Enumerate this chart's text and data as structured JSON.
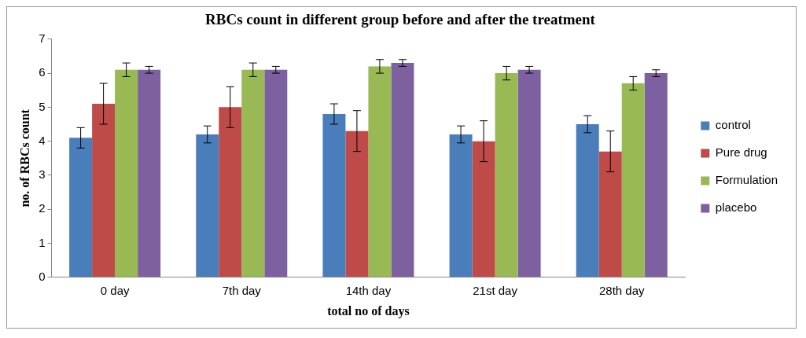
{
  "chart_data": {
    "type": "bar",
    "title": "RBCs count in different group before and after the treatment",
    "xlabel": "total no of days",
    "ylabel": "no. of RBCs count",
    "categories": [
      "0 day",
      "7th day",
      "14th day",
      "21st day",
      "28th day"
    ],
    "series": [
      {
        "name": "control",
        "color": "#4a7ebb",
        "values": [
          4.1,
          4.2,
          4.8,
          4.2,
          4.5
        ],
        "errors": [
          0.3,
          0.25,
          0.3,
          0.25,
          0.25
        ]
      },
      {
        "name": "Pure drug",
        "color": "#be4b48",
        "values": [
          5.1,
          5.0,
          4.3,
          4.0,
          3.7
        ],
        "errors": [
          0.6,
          0.6,
          0.6,
          0.6,
          0.6
        ]
      },
      {
        "name": "Formulation",
        "color": "#98b954",
        "values": [
          6.1,
          6.1,
          6.2,
          6.0,
          5.7
        ],
        "errors": [
          0.2,
          0.2,
          0.2,
          0.2,
          0.2
        ]
      },
      {
        "name": "placebo",
        "color": "#7d60a0",
        "values": [
          6.1,
          6.1,
          6.3,
          6.1,
          6.0
        ],
        "errors": [
          0.1,
          0.1,
          0.1,
          0.1,
          0.1
        ]
      }
    ],
    "ylim": [
      0,
      7
    ],
    "yticks": [
      0,
      1,
      2,
      3,
      4,
      5,
      6,
      7
    ],
    "grid": false,
    "legend": "right"
  }
}
